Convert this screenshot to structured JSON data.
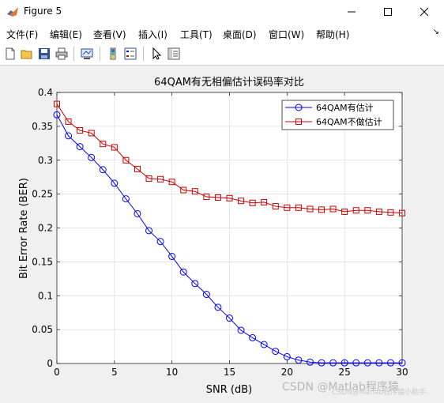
{
  "window": {
    "title": "Figure 5",
    "minimize_glyph": "—",
    "maximize_glyph": "☐",
    "close_glyph": "✕"
  },
  "menu": {
    "items": [
      "文件(F)",
      "编辑(E)",
      "查看(V)",
      "插入(I)",
      "工具(T)",
      "桌面(D)",
      "窗口(W)",
      "帮助(H)"
    ],
    "overflow_glyph": "↘"
  },
  "toolbar": {
    "icons": [
      "new-figure-icon",
      "open-file-icon",
      "save-icon",
      "print-icon",
      "link-plot-icon",
      "colorbar-icon",
      "legend-icon",
      "pointer-icon",
      "property-inspector-icon"
    ]
  },
  "watermark": "CSDN @Matlab程序猿",
  "watermark2": "CSDN@Matlab程序猿小助手",
  "chart_data": {
    "type": "line",
    "title": "64QAM有无相偏估计误码率对比",
    "xlabel": "SNR (dB)",
    "ylabel": "Bit Error Rate (BER)",
    "xlim": [
      0,
      30
    ],
    "ylim": [
      0,
      0.4
    ],
    "xticks": [
      0,
      5,
      10,
      15,
      20,
      25,
      30
    ],
    "yticks": [
      0,
      0.05,
      0.1,
      0.15,
      0.2,
      0.25,
      0.3,
      0.35,
      0.4
    ],
    "ytick_labels": [
      "0",
      "0.05",
      "0.1",
      "0.15",
      "0.2",
      "0.25",
      "0.3",
      "0.35",
      "0.4"
    ],
    "grid": true,
    "legend_position": "top-right",
    "x": [
      0,
      1,
      2,
      3,
      4,
      5,
      6,
      7,
      8,
      9,
      10,
      11,
      12,
      13,
      14,
      15,
      16,
      17,
      18,
      19,
      20,
      21,
      22,
      23,
      24,
      25,
      26,
      27,
      28,
      29,
      30
    ],
    "series": [
      {
        "name": "64QAM有估计",
        "color": "#0000ff",
        "marker": "circle",
        "values": [
          0.367,
          0.336,
          0.32,
          0.304,
          0.286,
          0.266,
          0.243,
          0.221,
          0.196,
          0.18,
          0.158,
          0.135,
          0.118,
          0.102,
          0.083,
          0.067,
          0.049,
          0.038,
          0.028,
          0.018,
          0.01,
          0.005,
          0.002,
          0.001,
          0.001,
          0.001,
          0.001,
          0.001,
          0.001,
          0.001,
          0.001
        ]
      },
      {
        "name": "64QAM不做估计",
        "color": "#cc0000",
        "marker": "square",
        "values": [
          0.383,
          0.357,
          0.344,
          0.34,
          0.324,
          0.319,
          0.3,
          0.287,
          0.273,
          0.272,
          0.268,
          0.256,
          0.254,
          0.246,
          0.245,
          0.244,
          0.24,
          0.237,
          0.238,
          0.232,
          0.23,
          0.23,
          0.228,
          0.227,
          0.228,
          0.224,
          0.226,
          0.226,
          0.224,
          0.223,
          0.222
        ]
      }
    ]
  }
}
